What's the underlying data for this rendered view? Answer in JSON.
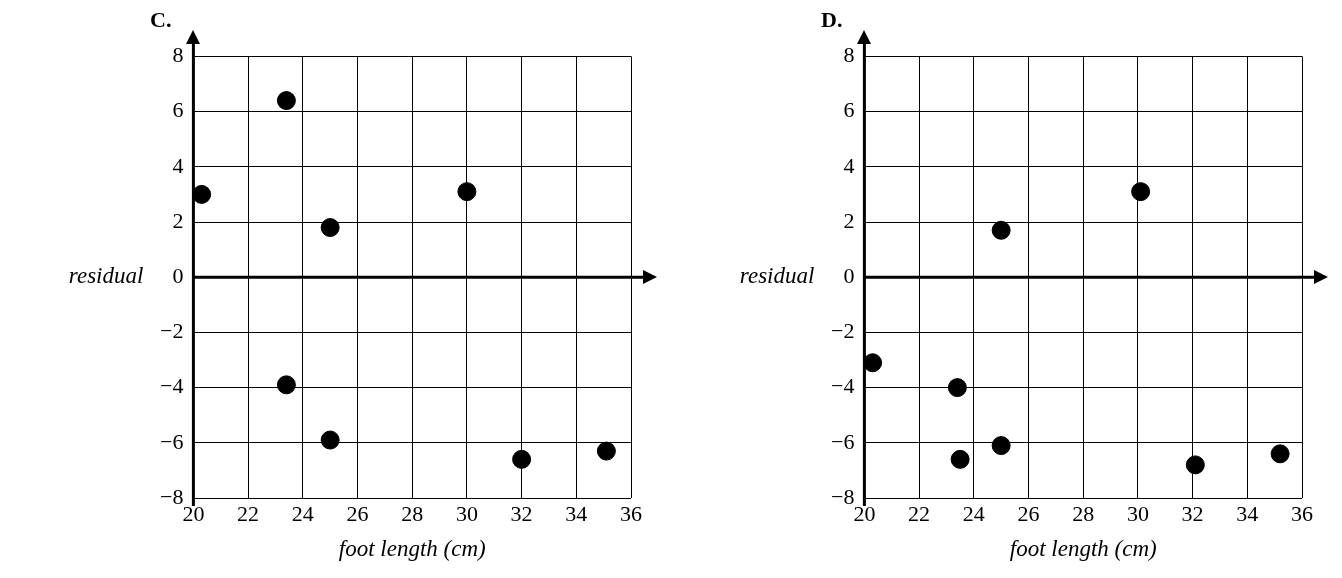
{
  "chart_data": [
    {
      "type": "scatter",
      "title": "C.",
      "xlabel": "foot length (cm)",
      "ylabel": "residual",
      "series": [
        {
          "color": "#000000",
          "x": [
            20.3,
            23.4,
            25,
            30,
            23.4,
            25,
            32,
            35.1
          ],
          "values": [
            3.0,
            6.4,
            1.8,
            3.1,
            -3.9,
            -5.9,
            -6.6,
            -6.3
          ]
        }
      ],
      "xlim": [
        20,
        36
      ],
      "xticks": [
        20,
        22,
        24,
        26,
        28,
        30,
        32,
        34,
        36
      ],
      "ylim": [
        -8,
        8
      ],
      "yticks": [
        -8,
        -6,
        -4,
        -2,
        0,
        2,
        4,
        6,
        8
      ],
      "grid": true,
      "marker": "circle",
      "legend": false
    },
    {
      "type": "scatter",
      "title": "D.",
      "xlabel": "foot length (cm)",
      "ylabel": "residual",
      "series": [
        {
          "color": "#000000",
          "x": [
            20.3,
            23.4,
            23.5,
            25,
            25,
            30.1,
            32.1,
            35.2
          ],
          "values": [
            -3.1,
            -4.0,
            -6.6,
            1.7,
            -6.1,
            3.1,
            -6.8,
            -6.4
          ]
        }
      ],
      "xlim": [
        20,
        36
      ],
      "xticks": [
        20,
        22,
        24,
        26,
        28,
        30,
        32,
        34,
        36
      ],
      "ylim": [
        -8,
        8
      ],
      "yticks": [
        -8,
        -6,
        -4,
        -2,
        0,
        2,
        4,
        6,
        8
      ],
      "grid": true,
      "marker": "circle",
      "legend": false
    }
  ]
}
